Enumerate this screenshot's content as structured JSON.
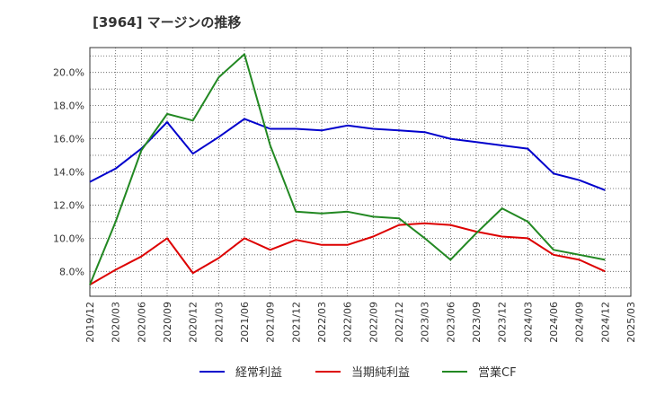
{
  "chart_data": {
    "type": "line",
    "title": "[3964]  マージンの推移",
    "x": [
      "2019/12",
      "2020/03",
      "2020/06",
      "2020/09",
      "2020/12",
      "2021/03",
      "2021/06",
      "2021/09",
      "2021/12",
      "2022/03",
      "2022/06",
      "2022/09",
      "2022/12",
      "2023/03",
      "2023/06",
      "2023/09",
      "2023/12",
      "2024/03",
      "2024/06",
      "2024/09",
      "2024/12",
      "2025/03"
    ],
    "ylim": [
      6.5,
      21.5
    ],
    "yticks": [
      "8.0%",
      "10.0%",
      "12.0%",
      "14.0%",
      "16.0%",
      "18.0%",
      "20.0%"
    ],
    "grid": true,
    "legend": "bottom",
    "series": [
      {
        "name": "経常利益",
        "color": "#0000cc",
        "values": [
          13.4,
          14.2,
          15.4,
          17.0,
          15.1,
          16.1,
          17.2,
          16.6,
          16.6,
          16.5,
          16.8,
          16.6,
          16.5,
          16.4,
          16.0,
          15.8,
          15.6,
          15.4,
          13.9,
          13.5,
          12.9,
          null
        ]
      },
      {
        "name": "当期純利益",
        "color": "#dd0000",
        "values": [
          7.2,
          8.1,
          8.9,
          10.0,
          7.9,
          8.8,
          10.0,
          9.3,
          9.9,
          9.6,
          9.6,
          10.1,
          10.8,
          10.9,
          10.8,
          10.4,
          10.1,
          10.0,
          9.0,
          8.7,
          8.0,
          null
        ]
      },
      {
        "name": "営業CF",
        "color": "#228822",
        "values": [
          7.2,
          11.0,
          15.3,
          17.5,
          17.1,
          19.7,
          21.1,
          15.6,
          11.6,
          11.5,
          11.6,
          11.3,
          11.2,
          10.0,
          8.7,
          10.3,
          11.8,
          11.0,
          9.3,
          9.0,
          8.7,
          null
        ]
      }
    ]
  }
}
